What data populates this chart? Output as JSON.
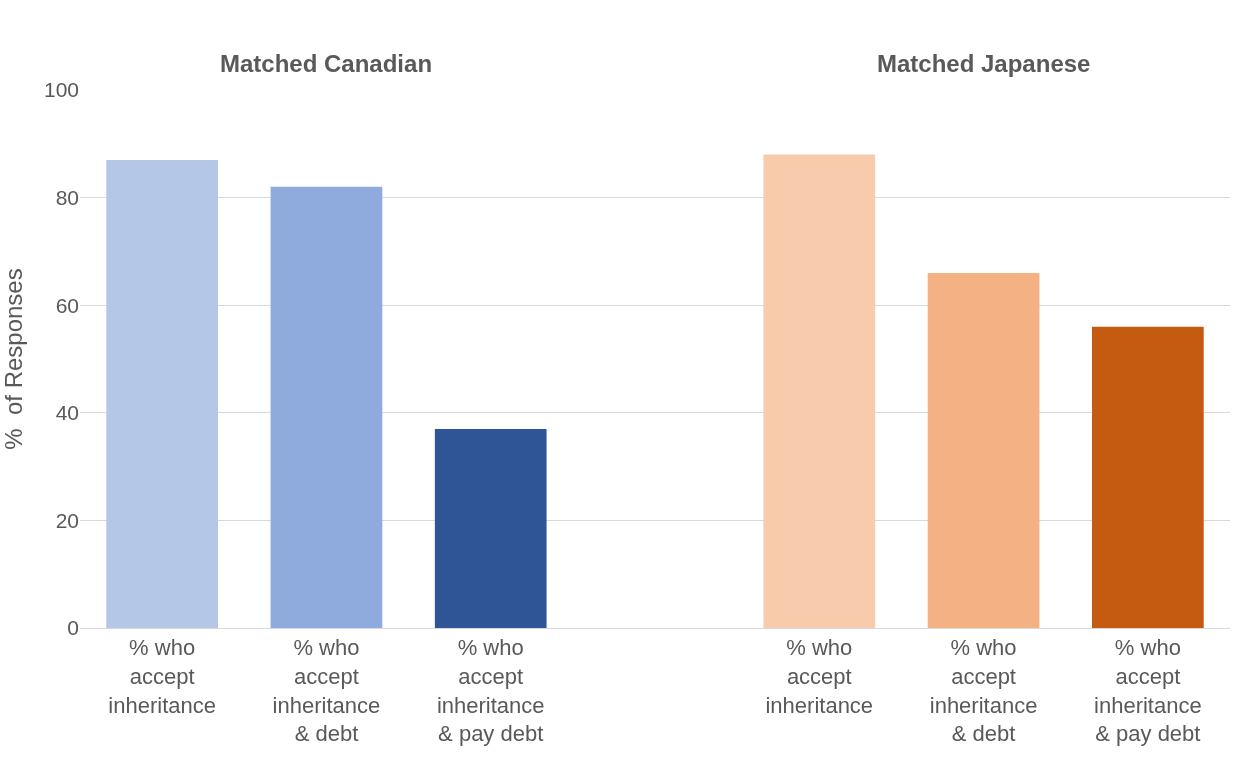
{
  "chart_data": {
    "type": "bar",
    "ylabel": "%  of Responses",
    "categories": [
      "% who accept inheritance",
      "% who accept inheritance & debt",
      "% who accept inheritance & pay debt",
      null,
      "% who accept inheritance",
      "% who accept inheritance & debt",
      "% who accept inheritance & pay debt"
    ],
    "values": [
      87,
      82,
      37,
      null,
      88,
      66,
      56
    ],
    "colors": [
      "#b4c7e7",
      "#8faadc",
      "#2f5597",
      "#ffffff",
      "#f8cbad",
      "#f4b183",
      "#c55a11"
    ],
    "annotations": [
      "Matched Canadian",
      "Matched Japanese"
    ],
    "ylim": [
      0,
      100
    ],
    "yticks": [
      0,
      20,
      40,
      60,
      80,
      100
    ],
    "grid": "y",
    "legend": false
  }
}
